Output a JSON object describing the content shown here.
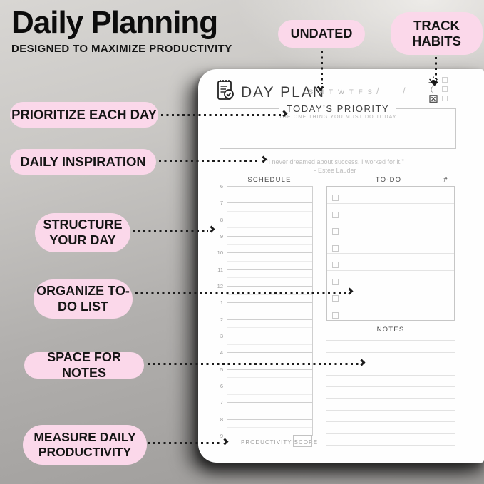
{
  "header": {
    "title": "Daily Planning",
    "subtitle": "DESIGNED TO MAXIMIZE PRODUCTIVITY"
  },
  "callouts": {
    "undated": "UNDATED",
    "track_habits": "TRACK HABITS",
    "prioritize": "PRIORITIZE EACH DAY",
    "inspiration": "DAILY INSPIRATION",
    "structure": "STRUCTURE YOUR DAY",
    "organize": "ORGANIZE TO-DO LIST",
    "notes": "SPACE FOR NOTES",
    "measure": "MEASURE DAILY PRODUCTIVITY"
  },
  "planner": {
    "brand": "DAY PLAN",
    "week_days": [
      "S",
      "M",
      "T",
      "W",
      "T",
      "F",
      "S"
    ],
    "date_slashes": [
      "/",
      "/"
    ],
    "habit_icons": [
      "sun-icon",
      "moon-icon",
      "cancel-icon"
    ],
    "priority": {
      "title": "TODAY’S PRIORITY",
      "subtitle": "THE ONE THING YOU MUST DO TODAY"
    },
    "quote": {
      "text": "\"I never dreamed about success. I worked for it.\"",
      "author": "- Estee Lauder"
    },
    "schedule": {
      "header": "SCHEDULE",
      "hours": [
        "6",
        "7",
        "8",
        "9",
        "10",
        "11",
        "12",
        "1",
        "2",
        "3",
        "4",
        "5",
        "6",
        "7",
        "8",
        "9"
      ]
    },
    "todo": {
      "header": "TO-DO",
      "count_header": "#",
      "row_count": 8
    },
    "notes": {
      "header": "NOTES",
      "line_count": 10
    },
    "productivity": {
      "label": "PRODUCTIVITY SCORE"
    }
  },
  "colors": {
    "bubble_pink": "#fbd8ea",
    "arrow_black": "#1c1c1c"
  }
}
